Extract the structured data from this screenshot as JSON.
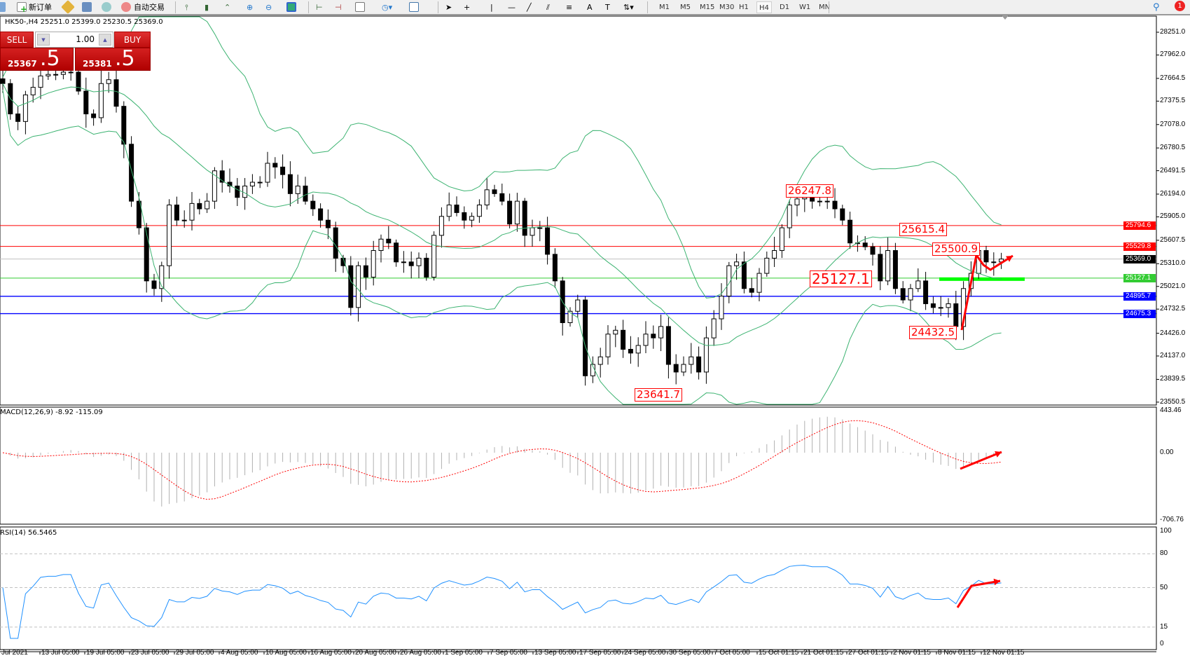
{
  "toolbar": {
    "new_order_label": "新订单",
    "auto_trade_label": "自动交易",
    "timeframes": [
      "M1",
      "M5",
      "M15",
      "M30",
      "H1",
      "H4",
      "D1",
      "W1",
      "MN"
    ],
    "active_timeframe": "H4",
    "notification_count": "1",
    "icons": [
      "search-icon",
      "new-order-icon",
      "market-watch-icon",
      "navigator-icon",
      "signals-icon",
      "auto-trade-icon",
      "bar-chart-icon",
      "candlestick-icon",
      "line-chart-icon",
      "zoom-in-icon",
      "zoom-out-icon",
      "tile-windows-icon",
      "scroll-icon",
      "shift-icon",
      "add-indicator-icon",
      "period-clock-icon",
      "template-icon",
      "cursor-icon",
      "crosshair-icon",
      "vertical-line-icon",
      "horizontal-line-icon",
      "trendline-icon",
      "channel-icon",
      "fibonacci-icon",
      "text-icon",
      "text-label-icon",
      "arrows-icon"
    ]
  },
  "chart": {
    "header": "HK50-,H4  25251.0 25399.0 25230.5 25369.0",
    "trade_panel": {
      "sell_label": "SELL",
      "buy_label": "BUY",
      "lot": "1.00",
      "sell_price_main": "25367",
      "sell_price_frac": ".5",
      "buy_price_main": "25381",
      "buy_price_frac": ".5"
    },
    "price_axis": [
      "28251.0",
      "27962.0",
      "27664.5",
      "27375.5",
      "27078.0",
      "26780.5",
      "26491.5",
      "26194.0",
      "25905.0",
      "25607.5",
      "25310.0",
      "25021.0",
      "24732.5",
      "24426.0",
      "24137.0",
      "23839.5",
      "23550.5"
    ],
    "price_lines": [
      {
        "value": 25794.6,
        "label": "25794.6",
        "color": "#ff0000"
      },
      {
        "value": 25529.8,
        "label": "25529.8",
        "color": "#ff0000"
      },
      {
        "value": 25369.0,
        "label": "25369.0",
        "color": "#000000",
        "line_color": "#c0c0c0"
      },
      {
        "value": 25127.1,
        "label": "25127.1",
        "color": "#33cc33"
      },
      {
        "value": 24895.7,
        "label": "24895.7",
        "color": "#0000ff"
      },
      {
        "value": 24675.3,
        "label": "24675.3",
        "color": "#0000ff"
      }
    ],
    "annotations": [
      "26247.8",
      "23641.7",
      "25615.4",
      "25500.9",
      "25127.1",
      "24432.5"
    ],
    "time_axis": [
      "Jul 2021",
      "13 Jul 05:00",
      "19 Jul 05:00",
      "23 Jul 05:00",
      "29 Jul 05:00",
      "4 Aug 05:00",
      "10 Aug 05:00",
      "16 Aug 05:00",
      "20 Aug 05:00",
      "26 Aug 05:00",
      "1 Sep 05:00",
      "7 Sep 05:00",
      "13 Sep 05:00",
      "17 Sep 05:00",
      "24 Sep 05:00",
      "30 Sep 05:00",
      "7 Oct 05:00",
      "15 Oct 01:15",
      "21 Oct 01:15",
      "27 Oct 01:15",
      "2 Nov 01:15",
      "8 Nov 01:15",
      "12 Nov 01:15"
    ],
    "macd": {
      "label": "MACD(12,26,9) -8.92 -115.09",
      "axis": [
        "443.46",
        "0.00",
        "-706.76"
      ],
      "max": 443.46,
      "min": -706.76
    },
    "rsi": {
      "label": "RSI(14) 56.5465",
      "axis": [
        "100",
        "80",
        "50",
        "15",
        "0"
      ],
      "levels": [
        80,
        50,
        15
      ]
    },
    "colors": {
      "bands": "#3cb371",
      "rsi": "#1e90ff",
      "macd_signal": "#ff0000",
      "macd_hist": "#b0b0b0",
      "arrows": "#ff0000",
      "support_bar": "#00ff00"
    }
  },
  "chart_data": {
    "type": "candlestick",
    "symbol": "HK50-",
    "timeframe": "H4",
    "ylim": [
      23550.5,
      28251.0
    ],
    "closes": [
      27599,
      27213,
      27117,
      27455,
      27551,
      27696,
      27715,
      27715,
      27744,
      27744,
      27503,
      27213,
      27165,
      27599,
      27648,
      27310,
      26828,
      26104,
      25766,
      25091,
      24994,
      25284,
      26056,
      25863,
      25863,
      26075,
      26007,
      26104,
      26490,
      26345,
      26297,
      26152,
      26297,
      26345,
      26345,
      26586,
      26538,
      26442,
      26200,
      26297,
      26104,
      26007,
      25863,
      25766,
      25380,
      25284,
      24753,
      25284,
      25139,
      25477,
      25622,
      25573,
      25332,
      25332,
      25284,
      25380,
      25139,
      25670,
      25911,
      26056,
      25959,
      25863,
      25911,
      26056,
      26249,
      26200,
      26104,
      25814,
      26104,
      25670,
      25766,
      25766,
      25429,
      25091,
      24560,
      24705,
      24849,
      23885,
      24030,
      24126,
      24415,
      24464,
      24222,
      24174,
      24271,
      24415,
      24367,
      24512,
      24030,
      23933,
      24030,
      24126,
      23933,
      24367,
      24609,
      24898,
      25284,
      25332,
      24994,
      24946,
      25187,
      25380,
      25477,
      25766,
      26056,
      26133,
      26152,
      26104,
      26104,
      26104,
      26007,
      25863,
      25573,
      25573,
      25525,
      25429,
      25091,
      25477,
      24994,
      24849,
      24994,
      25091,
      24801,
      24753,
      24753,
      24801,
      24512,
      24994,
      25187,
      25477,
      25332,
      25332,
      25369
    ]
  }
}
